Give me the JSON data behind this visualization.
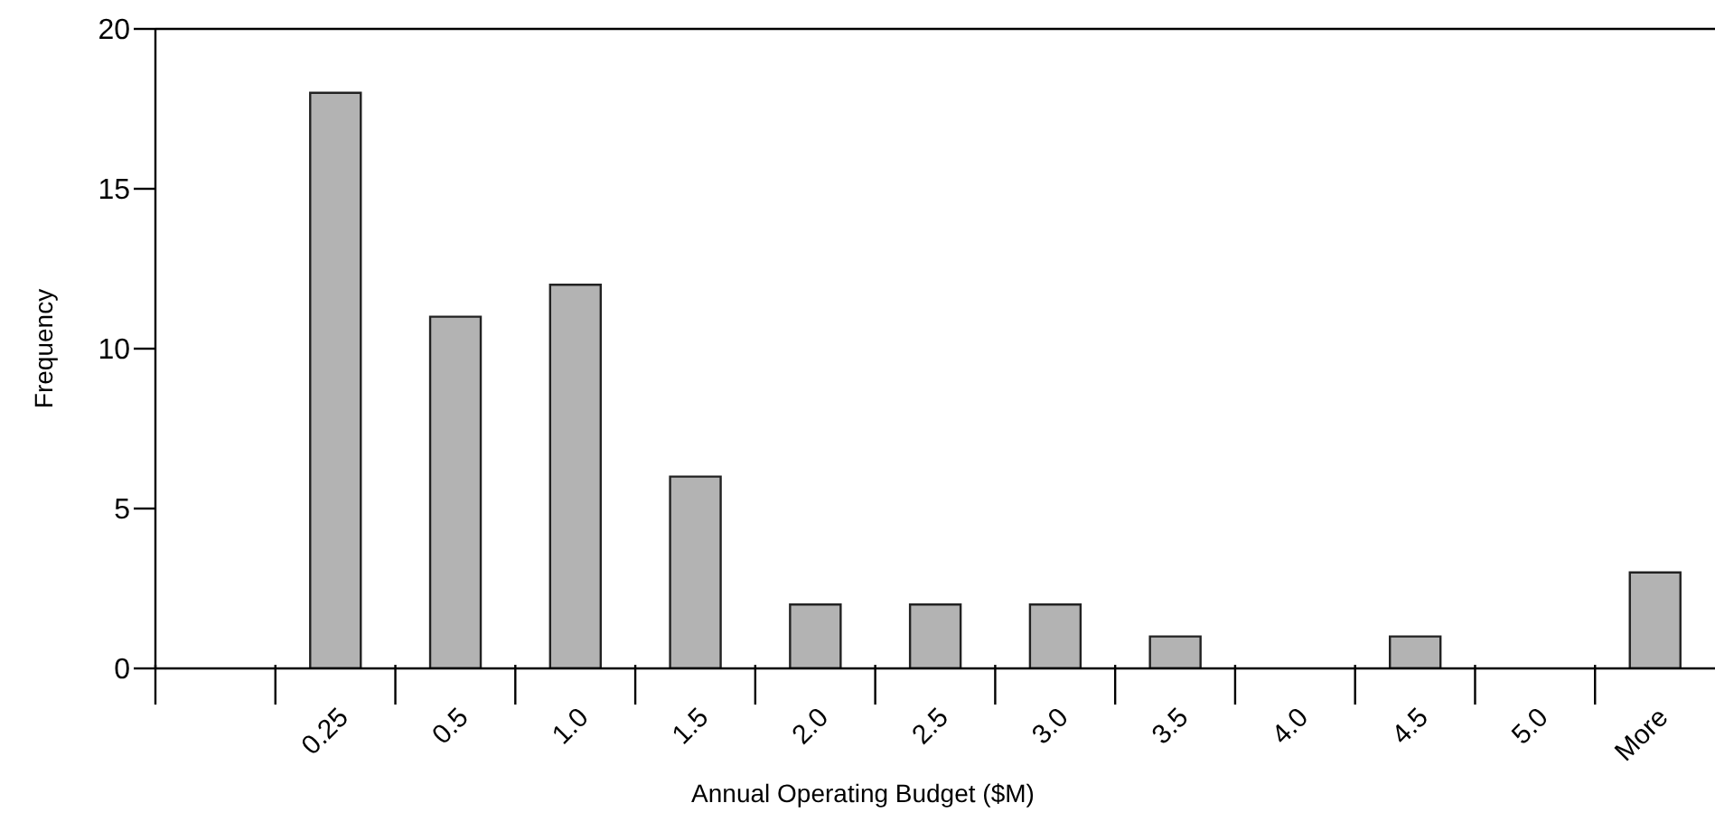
{
  "chart_data": {
    "type": "bar",
    "xlabel": "Annual Operating Budget ($M)",
    "ylabel": "Frequency",
    "categories": [
      null,
      "0.25",
      "0.5",
      "1.0",
      "1.5",
      "2.0",
      "2.5",
      "3.0",
      "3.5",
      "4.0",
      "4.5",
      "5.0",
      "More"
    ],
    "values": [
      0,
      18,
      11,
      12,
      6,
      2,
      2,
      2,
      1,
      0,
      1,
      0,
      3
    ],
    "color": "#b3b3b3",
    "ylim": [
      0,
      20
    ],
    "yticks": [
      0,
      5,
      10,
      15,
      20
    ]
  }
}
